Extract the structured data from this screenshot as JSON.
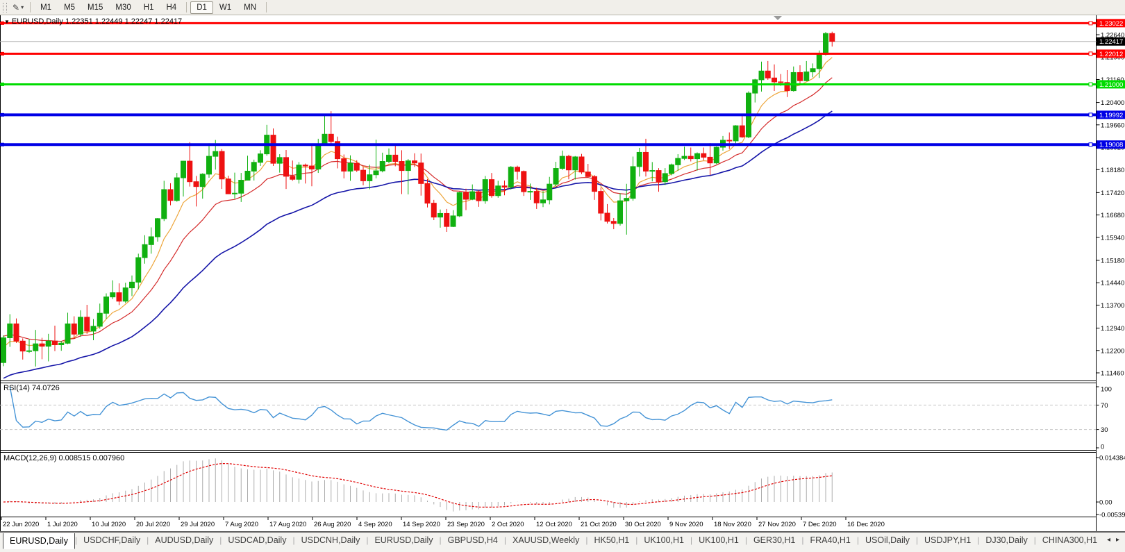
{
  "toolbar": {
    "draw_icon": "✎",
    "dropdown": "▾",
    "timeframes": [
      "M1",
      "M5",
      "M15",
      "M30",
      "H1",
      "H4",
      "D1",
      "W1",
      "MN"
    ],
    "active_timeframe": "D1"
  },
  "title": {
    "marker": "▼",
    "symbol": "EURUSD,Daily",
    "quotes": "1.22351 1.22449 1.22247 1.22417"
  },
  "current_price": {
    "label": "1.22417",
    "value": 1.22417
  },
  "price_axis": {
    "tick_labels": [
      "1.22640",
      "1.21900",
      "1.21160",
      "1.20400",
      "1.19660",
      "1.18920",
      "1.18180",
      "1.17420",
      "1.16680",
      "1.15940",
      "1.15180",
      "1.14440",
      "1.13700",
      "1.12940",
      "1.12200",
      "1.11460"
    ]
  },
  "hlines": [
    {
      "label": "1.23022",
      "price": 1.23022,
      "color": "#FF0000",
      "width": 3
    },
    {
      "label": "1.22012",
      "price": 1.22012,
      "color": "#FF0000",
      "width": 3
    },
    {
      "label": "1.21000",
      "price": 1.21,
      "color": "#00DC00",
      "width": 3
    },
    {
      "label": "1.19992",
      "price": 1.19992,
      "color": "#0000E6",
      "width": 4
    },
    {
      "label": "1.19008",
      "price": 1.19008,
      "color": "#0000E6",
      "width": 4
    }
  ],
  "rsi_panel": {
    "label": "RSI(14) 74.0726",
    "period": 14,
    "value": 74.0726,
    "axis_labels": [
      {
        "text": "100",
        "v": 100
      },
      {
        "text": "70",
        "v": 70
      },
      {
        "text": "30",
        "v": 30
      },
      {
        "text": "0",
        "v": 0
      }
    ],
    "dashed_levels": [
      70,
      30
    ],
    "line_color": "#4493D6"
  },
  "macd_panel": {
    "label": "MACD(12,26,9) 0.008515 0.007960",
    "macd": 0.008515,
    "signal": 0.00796,
    "axis_labels": [
      {
        "text": "0.014384",
        "v": 0.014384
      },
      {
        "text": "0.00",
        "v": 0
      },
      {
        "text": "-0.00539",
        "v": -0.00539
      }
    ],
    "hist_color": "#ACACAC",
    "signal_color": "#E00000"
  },
  "tabs": {
    "items": [
      "EURUSD,Daily",
      "USDCHF,Daily",
      "AUDUSD,Daily",
      "USDCAD,Daily",
      "USDCNH,Daily",
      "EURUSD,Daily",
      "GBPUSD,H4",
      "XAUUSD,Weekly",
      "HK50,H1",
      "UK100,H1",
      "UK100,H1",
      "GER30,H1",
      "FRA40,H1",
      "USOil,Daily",
      "USDJPY,H1",
      "DJ30,Daily",
      "CHINA300,H1",
      "U"
    ],
    "active_index": 0,
    "scroll_left": "◂",
    "scroll_right": "▸"
  },
  "colors": {
    "bull": "#10B010",
    "bear": "#EE1111",
    "ma_fast": "#EDA53A",
    "ma_mid": "#D42A2A",
    "ma_slow": "#1515A8",
    "current_line": "#B4B4B4",
    "current_badge_bg": "#000000",
    "axis_line": "#000000"
  },
  "chart_data": {
    "type": "candlestick",
    "symbol": "EURUSD",
    "timeframe": "Daily",
    "title": "EURUSD,Daily 1.22351 1.22449 1.22247 1.22417",
    "ylim": [
      1.1123,
      1.2331
    ],
    "horizontal_levels": [
      1.23022,
      1.22012,
      1.21,
      1.19992,
      1.19008
    ],
    "moving_averages": [
      {
        "name": "fast",
        "period": 7,
        "seed": 1.122
      },
      {
        "name": "medium",
        "period": 15,
        "seed": 1.1268
      },
      {
        "name": "slow",
        "period": 34,
        "seed": 1.112
      }
    ],
    "date_labels": [
      "22 Jun 2020",
      "1 Jul 2020",
      "10 Jul 2020",
      "20 Jul 2020",
      "29 Jul 2020",
      "7 Aug 2020",
      "17 Aug 2020",
      "26 Aug 2020",
      "4 Sep 2020",
      "14 Sep 2020",
      "23 Sep 2020",
      "2 Oct 2020",
      "12 Oct 2020",
      "21 Oct 2020",
      "30 Oct 2020",
      "9 Nov 2020",
      "18 Nov 2020",
      "27 Nov 2020",
      "7 Dec 2020",
      "16 Dec 2020"
    ],
    "candles": [
      [
        1.118,
        1.127,
        1.1168,
        1.1262
      ],
      [
        1.1262,
        1.134,
        1.1232,
        1.1308
      ],
      [
        1.1308,
        1.1326,
        1.1245,
        1.1251
      ],
      [
        1.1251,
        1.126,
        1.119,
        1.1218
      ],
      [
        1.1218,
        1.1258,
        1.1212,
        1.1219
      ],
      [
        1.1219,
        1.1288,
        1.1167,
        1.1242
      ],
      [
        1.1242,
        1.1262,
        1.1191,
        1.1234
      ],
      [
        1.1234,
        1.1275,
        1.1184,
        1.1251
      ],
      [
        1.1251,
        1.1302,
        1.1218,
        1.1239
      ],
      [
        1.1239,
        1.1251,
        1.1219,
        1.1244
      ],
      [
        1.1244,
        1.1345,
        1.1241,
        1.1308
      ],
      [
        1.1308,
        1.1333,
        1.1259,
        1.1274
      ],
      [
        1.1274,
        1.1353,
        1.1265,
        1.133
      ],
      [
        1.133,
        1.1371,
        1.1275,
        1.1284
      ],
      [
        1.1284,
        1.1324,
        1.1254,
        1.13
      ],
      [
        1.13,
        1.1375,
        1.1292,
        1.1343
      ],
      [
        1.1343,
        1.1409,
        1.1325,
        1.1397
      ],
      [
        1.1397,
        1.1452,
        1.139,
        1.1411
      ],
      [
        1.1411,
        1.1442,
        1.137,
        1.1383
      ],
      [
        1.1383,
        1.1444,
        1.1377,
        1.1427
      ],
      [
        1.1427,
        1.1468,
        1.14,
        1.1446
      ],
      [
        1.1446,
        1.154,
        1.1422,
        1.1527
      ],
      [
        1.1527,
        1.1601,
        1.1507,
        1.157
      ],
      [
        1.157,
        1.1627,
        1.154,
        1.1596
      ],
      [
        1.1596,
        1.1658,
        1.158,
        1.1656
      ],
      [
        1.1656,
        1.1781,
        1.1648,
        1.1752
      ],
      [
        1.1752,
        1.1773,
        1.17,
        1.1716
      ],
      [
        1.1716,
        1.1807,
        1.1712,
        1.1791
      ],
      [
        1.1791,
        1.1847,
        1.1729,
        1.1846
      ],
      [
        1.1846,
        1.1909,
        1.1762,
        1.1778
      ],
      [
        1.1778,
        1.1797,
        1.1696,
        1.1762
      ],
      [
        1.1762,
        1.1806,
        1.1722,
        1.1803
      ],
      [
        1.1803,
        1.1905,
        1.1791,
        1.1862
      ],
      [
        1.1862,
        1.1916,
        1.1818,
        1.1878
      ],
      [
        1.1878,
        1.1886,
        1.1754,
        1.1787
      ],
      [
        1.1787,
        1.1798,
        1.1737,
        1.1738
      ],
      [
        1.1738,
        1.1808,
        1.1722,
        1.174
      ],
      [
        1.174,
        1.1807,
        1.1711,
        1.1783
      ],
      [
        1.1783,
        1.1864,
        1.1782,
        1.1813
      ],
      [
        1.1813,
        1.1851,
        1.1782,
        1.1842
      ],
      [
        1.1842,
        1.1882,
        1.183,
        1.187
      ],
      [
        1.187,
        1.1966,
        1.1864,
        1.1932
      ],
      [
        1.1932,
        1.1954,
        1.183,
        1.1839
      ],
      [
        1.1839,
        1.1869,
        1.1808,
        1.1858
      ],
      [
        1.1858,
        1.1883,
        1.1754,
        1.1796
      ],
      [
        1.1796,
        1.1848,
        1.1781,
        1.1786
      ],
      [
        1.1786,
        1.1843,
        1.1772,
        1.1833
      ],
      [
        1.1833,
        1.1838,
        1.1772,
        1.183
      ],
      [
        1.183,
        1.19,
        1.1763,
        1.182
      ],
      [
        1.182,
        1.192,
        1.1807,
        1.1903
      ],
      [
        1.1903,
        1.1997,
        1.1898,
        1.1935
      ],
      [
        1.1935,
        1.2011,
        1.1901,
        1.1911
      ],
      [
        1.1911,
        1.1927,
        1.1822,
        1.1854
      ],
      [
        1.1854,
        1.1868,
        1.1789,
        1.1813
      ],
      [
        1.1813,
        1.1865,
        1.1781,
        1.1839
      ],
      [
        1.1839,
        1.1849,
        1.181,
        1.1816
      ],
      [
        1.1816,
        1.1827,
        1.1766,
        1.1781
      ],
      [
        1.1781,
        1.1834,
        1.1753,
        1.1801
      ],
      [
        1.1801,
        1.1917,
        1.1789,
        1.1814
      ],
      [
        1.1814,
        1.1874,
        1.1809,
        1.1845
      ],
      [
        1.1845,
        1.1888,
        1.1839,
        1.1866
      ],
      [
        1.1866,
        1.19,
        1.1829,
        1.1845
      ],
      [
        1.1845,
        1.1882,
        1.1737,
        1.1815
      ],
      [
        1.1815,
        1.1853,
        1.1736,
        1.1847
      ],
      [
        1.1847,
        1.1872,
        1.1827,
        1.184
      ],
      [
        1.184,
        1.1871,
        1.1732,
        1.1772
      ],
      [
        1.1772,
        1.1787,
        1.1693,
        1.1707
      ],
      [
        1.1707,
        1.1718,
        1.1651,
        1.1661
      ],
      [
        1.1661,
        1.1686,
        1.1626,
        1.1673
      ],
      [
        1.1673,
        1.1688,
        1.1612,
        1.163
      ],
      [
        1.163,
        1.1684,
        1.1628,
        1.1665
      ],
      [
        1.1665,
        1.1745,
        1.1661,
        1.1742
      ],
      [
        1.1742,
        1.1755,
        1.1684,
        1.172
      ],
      [
        1.172,
        1.1769,
        1.1717,
        1.1745
      ],
      [
        1.1745,
        1.175,
        1.1695,
        1.1715
      ],
      [
        1.1715,
        1.1797,
        1.1705,
        1.1785
      ],
      [
        1.1785,
        1.1807,
        1.1725,
        1.1732
      ],
      [
        1.1732,
        1.1781,
        1.1725,
        1.1764
      ],
      [
        1.1764,
        1.1782,
        1.1733,
        1.176
      ],
      [
        1.176,
        1.183,
        1.1752,
        1.1826
      ],
      [
        1.1826,
        1.1831,
        1.1785,
        1.1812
      ],
      [
        1.1812,
        1.1815,
        1.1731,
        1.1745
      ],
      [
        1.1745,
        1.1772,
        1.1718,
        1.1746
      ],
      [
        1.1746,
        1.1758,
        1.1688,
        1.1708
      ],
      [
        1.1708,
        1.1747,
        1.1694,
        1.1718
      ],
      [
        1.1718,
        1.1794,
        1.1703,
        1.177
      ],
      [
        1.177,
        1.1844,
        1.176,
        1.1822
      ],
      [
        1.1822,
        1.1881,
        1.1817,
        1.1862
      ],
      [
        1.1862,
        1.1867,
        1.1786,
        1.1817
      ],
      [
        1.1817,
        1.1863,
        1.1785,
        1.186
      ],
      [
        1.186,
        1.187,
        1.1803,
        1.181
      ],
      [
        1.181,
        1.1837,
        1.1794,
        1.1795
      ],
      [
        1.1795,
        1.18,
        1.1718,
        1.1746
      ],
      [
        1.1746,
        1.1759,
        1.165,
        1.1674
      ],
      [
        1.1674,
        1.1704,
        1.164,
        1.1647
      ],
      [
        1.1647,
        1.1658,
        1.1621,
        1.164
      ],
      [
        1.164,
        1.174,
        1.1633,
        1.1715
      ],
      [
        1.1715,
        1.1771,
        1.1603,
        1.1723
      ],
      [
        1.1723,
        1.1861,
        1.1715,
        1.1828
      ],
      [
        1.1828,
        1.189,
        1.1795,
        1.1875
      ],
      [
        1.1875,
        1.192,
        1.1795,
        1.1813
      ],
      [
        1.1813,
        1.1843,
        1.1779,
        1.1815
      ],
      [
        1.1815,
        1.1823,
        1.1745,
        1.1778
      ],
      [
        1.1778,
        1.1823,
        1.1767,
        1.1805
      ],
      [
        1.1805,
        1.1838,
        1.1799,
        1.1834
      ],
      [
        1.1834,
        1.1869,
        1.1814,
        1.1855
      ],
      [
        1.1855,
        1.1894,
        1.185,
        1.1862
      ],
      [
        1.1862,
        1.1891,
        1.1845,
        1.1854
      ],
      [
        1.1854,
        1.1875,
        1.1815,
        1.1871
      ],
      [
        1.1871,
        1.1891,
        1.1849,
        1.1859
      ],
      [
        1.1859,
        1.1906,
        1.18,
        1.184
      ],
      [
        1.184,
        1.1895,
        1.1836,
        1.1892
      ],
      [
        1.1892,
        1.1929,
        1.1881,
        1.1915
      ],
      [
        1.1915,
        1.1941,
        1.1886,
        1.1913
      ],
      [
        1.1913,
        1.1965,
        1.1905,
        1.1963
      ],
      [
        1.1963,
        1.2003,
        1.1923,
        1.1926
      ],
      [
        1.1926,
        1.2077,
        1.1922,
        1.2071
      ],
      [
        1.2071,
        1.2118,
        1.204,
        1.2115
      ],
      [
        1.2115,
        1.2175,
        1.2076,
        1.2144
      ],
      [
        1.2144,
        1.2177,
        1.2115,
        1.2121
      ],
      [
        1.2121,
        1.2166,
        1.2078,
        1.2108
      ],
      [
        1.2108,
        1.2134,
        1.2095,
        1.2106
      ],
      [
        1.2106,
        1.2147,
        1.2058,
        1.2079
      ],
      [
        1.2079,
        1.2159,
        1.2076,
        1.2139
      ],
      [
        1.2139,
        1.2163,
        1.2101,
        1.2112
      ],
      [
        1.2112,
        1.2177,
        1.211,
        1.2141
      ],
      [
        1.2141,
        1.2169,
        1.2123,
        1.2152
      ],
      [
        1.2152,
        1.2212,
        1.2121,
        1.2199
      ],
      [
        1.2199,
        1.2273,
        1.2195,
        1.2268
      ],
      [
        1.2268,
        1.2274,
        1.2225,
        1.2242
      ]
    ]
  }
}
